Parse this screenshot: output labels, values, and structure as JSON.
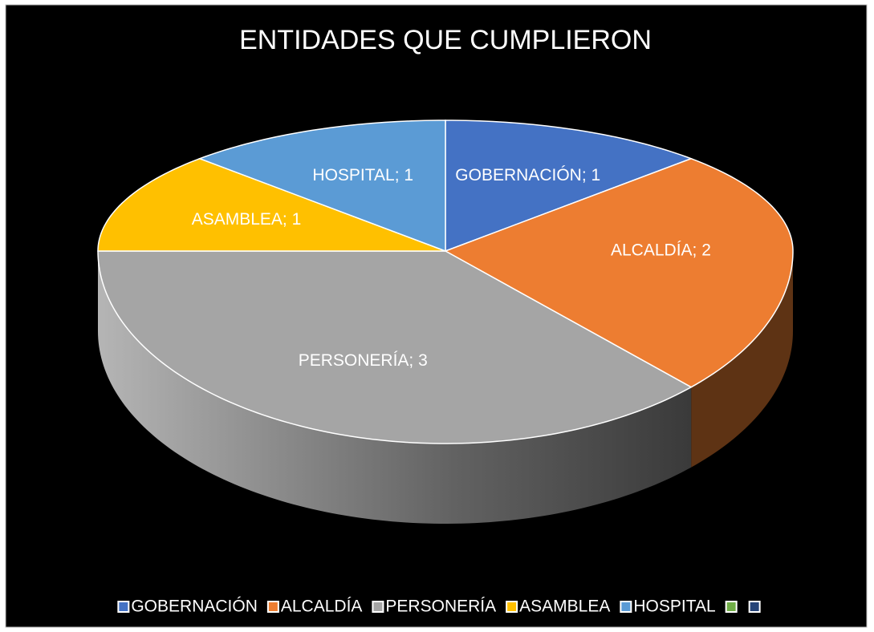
{
  "chart_data": {
    "type": "pie3d",
    "title": "ENTIDADES QUE CUMPLIERON",
    "categories": [
      "GOBERNACIÓN",
      "ALCALDÍA",
      "PERSONERÍA",
      "ASAMBLEA",
      "HOSPITAL",
      null,
      null
    ],
    "values": [
      1,
      2,
      3,
      1,
      1,
      null,
      null
    ],
    "value_labels": [
      "GOBERNACIÓN; 1",
      "ALCALDÍA; 2",
      "PERSONERÍA; 3",
      "ASAMBLEA; 1",
      "HOSPITAL; 1",
      null,
      null
    ],
    "colors": [
      "#4472c4",
      "#ed7d31",
      "#a5a5a5",
      "#ffc000",
      "#5b9bd5",
      "#70ad47",
      "#264478"
    ],
    "legend": "bottom"
  }
}
